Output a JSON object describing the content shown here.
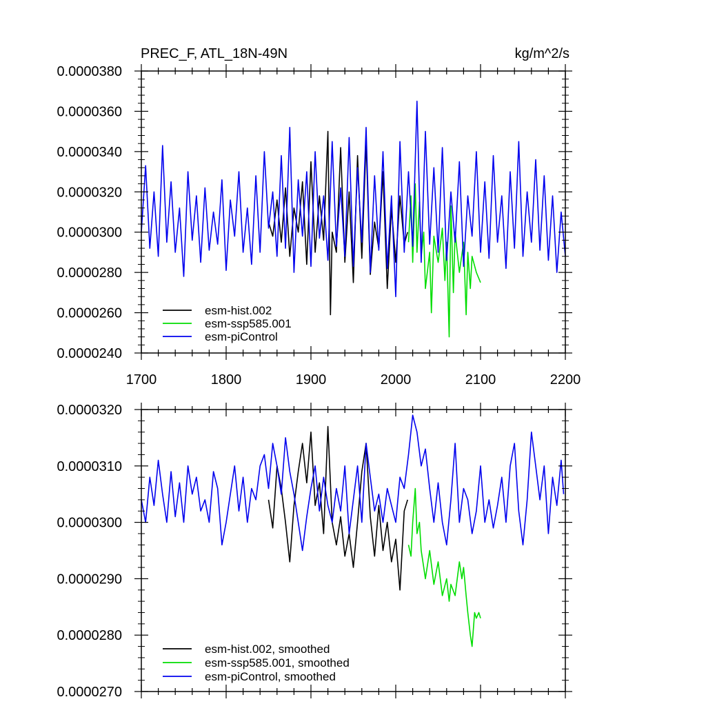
{
  "chart_data": [
    {
      "type": "line",
      "title": "PREC_F, ATL_18N-49N",
      "units": "kg/m^2/s",
      "xlim": [
        1700,
        2200
      ],
      "ylim": [
        2.4e-05,
        3.8e-05
      ],
      "x_ticks": [
        1700,
        1800,
        1900,
        2000,
        2100,
        2200
      ],
      "x_tick_labels": [
        "1700",
        "1800",
        "1900",
        "2000",
        "2100",
        "2200"
      ],
      "y_ticks": [
        2.4e-05,
        2.6e-05,
        2.8e-05,
        3e-05,
        3.2e-05,
        3.4e-05,
        3.6e-05,
        3.8e-05
      ],
      "y_tick_labels": [
        "0.0000240",
        "0.0000260",
        "0.0000280",
        "0.0000300",
        "0.0000320",
        "0.0000340",
        "0.0000360",
        "0.0000380"
      ],
      "legend_position": "bottom-left",
      "series": [
        {
          "name": "esm-hist.002",
          "color": "#000000",
          "x": [
            1850,
            1855,
            1860,
            1865,
            1870,
            1875,
            1880,
            1885,
            1890,
            1895,
            1900,
            1905,
            1910,
            1915,
            1920,
            1923,
            1925,
            1930,
            1935,
            1940,
            1945,
            1950,
            1955,
            1960,
            1965,
            1970,
            1975,
            1980,
            1985,
            1990,
            1995,
            2000,
            2005,
            2010,
            2014
          ],
          "values": [
            3.05e-05,
            2.98e-05,
            3.16e-05,
            2.95e-05,
            3.22e-05,
            2.88e-05,
            3.12e-05,
            3e-05,
            3.25e-05,
            2.84e-05,
            3.35e-05,
            2.9e-05,
            3.18e-05,
            2.96e-05,
            3.5e-05,
            2.59e-05,
            3e-05,
            2.9e-05,
            3.42e-05,
            2.85e-05,
            3.2e-05,
            2.75e-05,
            3.38e-05,
            2.87e-05,
            3.45e-05,
            2.79e-05,
            3.05e-05,
            2.92e-05,
            3.3e-05,
            2.72e-05,
            3.12e-05,
            2.85e-05,
            3.18e-05,
            2.94e-05,
            3e-05
          ]
        },
        {
          "name": "esm-ssp585.001",
          "color": "#00dd00",
          "x": [
            2015,
            2018,
            2020,
            2023,
            2025,
            2028,
            2030,
            2033,
            2035,
            2040,
            2042,
            2045,
            2050,
            2055,
            2058,
            2060,
            2063,
            2065,
            2068,
            2070,
            2075,
            2080,
            2083,
            2085,
            2088,
            2090,
            2095,
            2100
          ],
          "values": [
            2.95e-05,
            3.18e-05,
            2.85e-05,
            3.24e-05,
            2.9e-05,
            3.15e-05,
            2.88e-05,
            3e-05,
            2.72e-05,
            2.9e-05,
            2.6e-05,
            2.98e-05,
            2.85e-05,
            3.02e-05,
            2.76e-05,
            2.95e-05,
            2.48e-05,
            3.13e-05,
            2.7e-05,
            3e-05,
            2.8e-05,
            2.95e-05,
            2.59e-05,
            2.9e-05,
            2.72e-05,
            2.88e-05,
            2.8e-05,
            2.75e-05
          ]
        },
        {
          "name": "esm-piControl",
          "color": "#0000ee",
          "x": [
            1700,
            1705,
            1710,
            1715,
            1720,
            1725,
            1730,
            1735,
            1740,
            1745,
            1750,
            1755,
            1760,
            1765,
            1770,
            1775,
            1780,
            1785,
            1790,
            1795,
            1800,
            1805,
            1810,
            1815,
            1820,
            1825,
            1830,
            1835,
            1840,
            1845,
            1850,
            1855,
            1860,
            1865,
            1870,
            1875,
            1880,
            1885,
            1890,
            1895,
            1900,
            1905,
            1910,
            1915,
            1920,
            1925,
            1930,
            1935,
            1940,
            1945,
            1950,
            1955,
            1960,
            1965,
            1970,
            1975,
            1980,
            1985,
            1990,
            1995,
            2000,
            2005,
            2010,
            2015,
            2020,
            2025,
            2030,
            2035,
            2040,
            2045,
            2050,
            2055,
            2060,
            2065,
            2070,
            2075,
            2080,
            2085,
            2090,
            2095,
            2100,
            2105,
            2110,
            2115,
            2120,
            2125,
            2130,
            2135,
            2140,
            2145,
            2150,
            2155,
            2160,
            2165,
            2170,
            2175,
            2180,
            2185,
            2190,
            2195,
            2200
          ],
          "values": [
            3e-05,
            3.33e-05,
            2.92e-05,
            3.2e-05,
            2.88e-05,
            3.43e-05,
            2.95e-05,
            3.25e-05,
            2.9e-05,
            3.12e-05,
            2.78e-05,
            3.3e-05,
            2.96e-05,
            3.18e-05,
            2.85e-05,
            3.22e-05,
            2.91e-05,
            3.1e-05,
            2.94e-05,
            3.26e-05,
            2.81e-05,
            3.16e-05,
            2.98e-05,
            3.3e-05,
            2.9e-05,
            3.12e-05,
            2.84e-05,
            3.28e-05,
            2.9e-05,
            3.4e-05,
            3.02e-05,
            3.2e-05,
            2.88e-05,
            3.38e-05,
            2.92e-05,
            3.52e-05,
            2.8e-05,
            3.26e-05,
            2.98e-05,
            3.3e-05,
            2.83e-05,
            3.4e-05,
            2.97e-05,
            3.18e-05,
            2.86e-05,
            3.45e-05,
            2.93e-05,
            3.22e-05,
            2.88e-05,
            3.47e-05,
            2.83e-05,
            3.32e-05,
            2.95e-05,
            3.52e-05,
            2.8e-05,
            3.28e-05,
            2.91e-05,
            3.4e-05,
            2.82e-05,
            3.18e-05,
            2.68e-05,
            3.45e-05,
            2.9e-05,
            3.3e-05,
            2.93e-05,
            3.65e-05,
            2.85e-05,
            3.5e-05,
            2.94e-05,
            3.32e-05,
            2.9e-05,
            3.42e-05,
            2.86e-05,
            3.2e-05,
            2.95e-05,
            3.35e-05,
            2.83e-05,
            3.18e-05,
            2.98e-05,
            3.4e-05,
            2.9e-05,
            3.25e-05,
            2.87e-05,
            3.38e-05,
            2.95e-05,
            3.18e-05,
            2.82e-05,
            3.3e-05,
            2.92e-05,
            3.45e-05,
            2.88e-05,
            3.2e-05,
            2.95e-05,
            3.36e-05,
            2.91e-05,
            3.28e-05,
            2.86e-05,
            3.18e-05,
            2.8e-05,
            3.1e-05,
            2.88e-05
          ]
        }
      ]
    },
    {
      "type": "line",
      "title": "",
      "xlim": [
        1700,
        2200
      ],
      "ylim": [
        2.7e-05,
        3.2e-05
      ],
      "x_ticks": [
        1700,
        1800,
        1900,
        2000,
        2100,
        2200
      ],
      "y_ticks": [
        2.7e-05,
        2.8e-05,
        2.9e-05,
        3e-05,
        3.1e-05,
        3.2e-05
      ],
      "y_tick_labels": [
        "0.0000270",
        "0.0000280",
        "0.0000290",
        "0.0000300",
        "0.0000310",
        "0.0000320"
      ],
      "legend_position": "bottom-left",
      "series": [
        {
          "name": "esm-hist.002, smoothed",
          "color": "#000000",
          "x": [
            1850,
            1855,
            1860,
            1865,
            1870,
            1875,
            1880,
            1885,
            1890,
            1895,
            1900,
            1905,
            1910,
            1915,
            1920,
            1925,
            1930,
            1935,
            1940,
            1945,
            1950,
            1955,
            1960,
            1965,
            1970,
            1975,
            1980,
            1985,
            1990,
            1995,
            2000,
            2005,
            2010,
            2014
          ],
          "values": [
            3.04e-05,
            2.99e-05,
            3.1e-05,
            3.06e-05,
            3e-05,
            2.93e-05,
            3.03e-05,
            3.09e-05,
            3.14e-05,
            3.07e-05,
            3.16e-05,
            3.03e-05,
            3.07e-05,
            2.98e-05,
            3.17e-05,
            3e-05,
            2.96e-05,
            3.01e-05,
            2.94e-05,
            2.98e-05,
            2.92e-05,
            3e-05,
            3.09e-05,
            3.14e-05,
            3.01e-05,
            2.94e-05,
            3.03e-05,
            2.95e-05,
            3e-05,
            2.93e-05,
            2.97e-05,
            2.88e-05,
            3.02e-05,
            3.04e-05
          ]
        },
        {
          "name": "esm-ssp585.001, smoothed",
          "color": "#00dd00",
          "x": [
            2015,
            2018,
            2020,
            2023,
            2025,
            2028,
            2030,
            2033,
            2035,
            2040,
            2045,
            2050,
            2055,
            2060,
            2063,
            2065,
            2070,
            2075,
            2078,
            2080,
            2083,
            2085,
            2088,
            2090,
            2093,
            2095,
            2098,
            2100
          ],
          "values": [
            2.96e-05,
            2.94e-05,
            3e-05,
            3.06e-05,
            2.98e-05,
            3e-05,
            2.95e-05,
            2.92e-05,
            2.9e-05,
            2.95e-05,
            2.89e-05,
            2.93e-05,
            2.87e-05,
            2.9e-05,
            2.86e-05,
            2.89e-05,
            2.87e-05,
            2.93e-05,
            2.9e-05,
            2.92e-05,
            2.87e-05,
            2.84e-05,
            2.8e-05,
            2.78e-05,
            2.84e-05,
            2.83e-05,
            2.84e-05,
            2.83e-05
          ]
        },
        {
          "name": "esm-piControl, smoothed",
          "color": "#0000ee",
          "x": [
            1700,
            1705,
            1710,
            1715,
            1720,
            1725,
            1730,
            1735,
            1740,
            1745,
            1750,
            1755,
            1760,
            1765,
            1770,
            1775,
            1780,
            1785,
            1790,
            1795,
            1800,
            1805,
            1810,
            1815,
            1820,
            1825,
            1830,
            1835,
            1840,
            1845,
            1850,
            1855,
            1860,
            1865,
            1870,
            1875,
            1880,
            1885,
            1890,
            1895,
            1900,
            1905,
            1910,
            1915,
            1920,
            1925,
            1930,
            1935,
            1940,
            1945,
            1950,
            1955,
            1960,
            1965,
            1970,
            1975,
            1980,
            1985,
            1990,
            1995,
            2000,
            2005,
            2010,
            2015,
            2020,
            2025,
            2030,
            2035,
            2040,
            2045,
            2050,
            2055,
            2060,
            2065,
            2070,
            2075,
            2080,
            2085,
            2090,
            2095,
            2100,
            2105,
            2110,
            2115,
            2120,
            2125,
            2130,
            2135,
            2140,
            2145,
            2150,
            2155,
            2160,
            2165,
            2170,
            2175,
            2180,
            2185,
            2190,
            2195,
            2198
          ],
          "values": [
            3.04e-05,
            3e-05,
            3.08e-05,
            3.03e-05,
            3.11e-05,
            3.05e-05,
            3e-05,
            3.09e-05,
            3.01e-05,
            3.07e-05,
            3e-05,
            3.1e-05,
            3.05e-05,
            3.08e-05,
            3.02e-05,
            3.04e-05,
            3e-05,
            3.09e-05,
            3.06e-05,
            2.96e-05,
            3e-05,
            3.05e-05,
            3.1e-05,
            3.02e-05,
            3.08e-05,
            3e-05,
            3.06e-05,
            3.04e-05,
            3.1e-05,
            3.12e-05,
            3.06e-05,
            3.14e-05,
            3.1e-05,
            3.05e-05,
            3.15e-05,
            3.09e-05,
            3.05e-05,
            3e-05,
            2.95e-05,
            3.01e-05,
            3.06e-05,
            3.1e-05,
            3.02e-05,
            3.08e-05,
            3.03e-05,
            3e-05,
            3.06e-05,
            3.02e-05,
            3.1e-05,
            2.98e-05,
            3.04e-05,
            3.1e-05,
            3e-05,
            3.14e-05,
            3.08e-05,
            3.02e-05,
            3.05e-05,
            3e-05,
            3.06e-05,
            3.03e-05,
            3e-05,
            3.08e-05,
            3.06e-05,
            3.12e-05,
            3.19e-05,
            3.16e-05,
            3.1e-05,
            3.13e-05,
            3.06e-05,
            3e-05,
            3.07e-05,
            3e-05,
            2.96e-05,
            3.04e-05,
            3.14e-05,
            3e-05,
            3.06e-05,
            3.04e-05,
            2.98e-05,
            3.02e-05,
            3.1e-05,
            3e-05,
            3.04e-05,
            2.99e-05,
            3.03e-05,
            3.08e-05,
            3e-05,
            3.1e-05,
            3.14e-05,
            3.02e-05,
            2.96e-05,
            3.04e-05,
            3.16e-05,
            3.1e-05,
            3.04e-05,
            3.1e-05,
            2.98e-05,
            3.08e-05,
            3.03e-05,
            3.11e-05,
            3.05e-05
          ]
        }
      ]
    }
  ]
}
